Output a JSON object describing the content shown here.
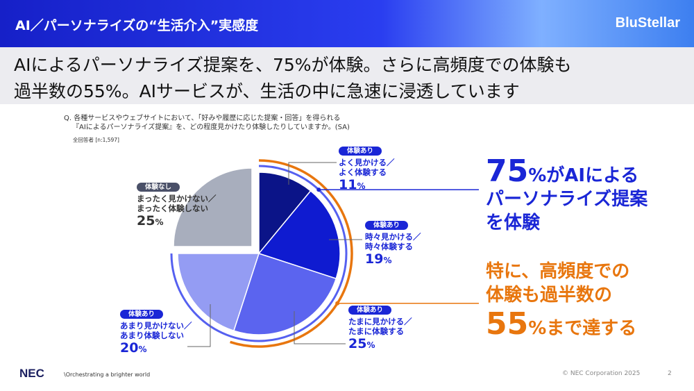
{
  "header": {
    "title": "AI／パーソナライズの“生活介入”実感度",
    "brand": "BluStellar"
  },
  "lead": {
    "line1": "AIによるパーソナライズ提案を、75%が体験。さらに高頻度での体験も",
    "line2": "過半数の55%。AIサービスが、生活の中に急速に浸透しています"
  },
  "question": {
    "line1": "Q. 各種サービスやウェブサイトにおいて、「好みや履歴に応じた提案・回答」を得られる",
    "line2": "『AIによるパーソナライズ提案』を、どの程度見かけたり体験したりしていますか。(SA)",
    "sample": "全回答者 [n:1,597]"
  },
  "chart_data": {
    "type": "pie",
    "slices": [
      {
        "badge": "体験あり",
        "label1": "よく見かける／",
        "label2": "よく体験する",
        "value": 11,
        "color": "#0b1488"
      },
      {
        "badge": "体験あり",
        "label1": "時々見かける／",
        "label2": "時々体験する",
        "value": 19,
        "color": "#0f1bd0"
      },
      {
        "badge": "体験あり",
        "label1": "たまに見かける／",
        "label2": "たまに体験する",
        "value": 25,
        "color": "#5b64ef"
      },
      {
        "badge": "体験あり",
        "label1": "あまり見かけない／",
        "label2": "あまり体験しない",
        "value": 20,
        "color": "#949cf3"
      },
      {
        "badge": "体験なし",
        "label1": "まったく見かけない／",
        "label2": "まったく体験しない",
        "value": 25,
        "color": "#a8aebd"
      }
    ],
    "pct_unit": "%",
    "experienced_total": 75,
    "high_frequency_total": 55
  },
  "callouts": {
    "c1": {
      "num": "75",
      "rest1": "%がAIによる",
      "line2": "パーソナライズ提案",
      "line3": "を体験",
      "color": "#1a26d6"
    },
    "c2": {
      "line1": "特に、高頻度での",
      "line2": "体験も過半数の",
      "num": "55",
      "rest3": "%まで達する",
      "color": "#e8760e"
    }
  },
  "footer": {
    "logo": "NEC",
    "tagline": "\\Orchestrating a brighter world",
    "copyright": "© NEC Corporation 2025",
    "page": "2"
  }
}
